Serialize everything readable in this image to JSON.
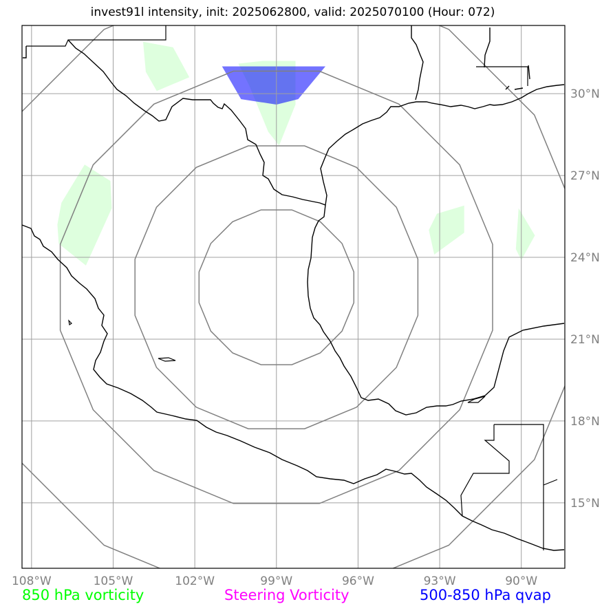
{
  "title": "invest91l intensity, init: 2025062800, valid: 2025070100 (Hour: 072)",
  "lon_labels": [
    {
      "lon": -108,
      "label": "108°W"
    },
    {
      "lon": -105,
      "label": "105°W"
    },
    {
      "lon": -102,
      "label": "102°W"
    },
    {
      "lon": -99,
      "label": "99°W"
    },
    {
      "lon": -96,
      "label": "96°W"
    },
    {
      "lon": -93,
      "label": "93°W"
    },
    {
      "lon": -90,
      "label": "90°W"
    }
  ],
  "lat_labels": [
    {
      "lat": 30,
      "label": "30°N"
    },
    {
      "lat": 27,
      "label": "27°N"
    },
    {
      "lat": 24,
      "label": "24°N"
    },
    {
      "lat": 21,
      "label": "21°N"
    },
    {
      "lat": 18,
      "label": "18°N"
    },
    {
      "lat": 15,
      "label": "15°N"
    }
  ],
  "extent": {
    "lon_min": -108.35,
    "lon_max": -88.4,
    "lat_min": 12.6,
    "lat_max": 32.5
  },
  "center": {
    "lon": -99.0,
    "lat": 22.9
  },
  "range_rings_deg": [
    2.9,
    5.3,
    8.1,
    11.4
  ],
  "legend": {
    "vorticity_850": "850 hPa vorticity",
    "steering_vorticity": "Steering Vorticity",
    "qvap_500_850": "500-850 hPa qvap"
  },
  "colors": {
    "vorticity_850": "#00ff00",
    "steering_vorticity": "#ff00ff",
    "qvap_500_850": "#0000ff",
    "gridline": "#a0a0a0",
    "ring": "#808080",
    "coastline": "#000000"
  },
  "vorticity_regions": [
    [
      [
        -107.05,
        25.2
      ],
      [
        -106.9,
        26.0
      ],
      [
        -106.05,
        27.4
      ],
      [
        -105.1,
        26.8
      ],
      [
        -105.05,
        25.8
      ],
      [
        -106.0,
        23.7
      ],
      [
        -107.0,
        24.5
      ]
    ],
    [
      [
        -102.8,
        31.7
      ],
      [
        -102.2,
        30.6
      ],
      [
        -103.4,
        30.1
      ],
      [
        -103.8,
        30.8
      ],
      [
        -103.9,
        31.9
      ]
    ],
    [
      [
        -99.5,
        31.2
      ],
      [
        -98.3,
        31.2
      ],
      [
        -98.3,
        29.6
      ],
      [
        -98.9,
        28.1
      ],
      [
        -99.3,
        28.6
      ],
      [
        -100.0,
        30.3
      ],
      [
        -100.4,
        31.1
      ]
    ],
    [
      [
        -93.1,
        25.6
      ],
      [
        -92.1,
        25.9
      ],
      [
        -92.1,
        24.9
      ],
      [
        -93.2,
        24.1
      ],
      [
        -93.4,
        25.0
      ]
    ],
    [
      [
        -90.1,
        25.8
      ],
      [
        -89.5,
        24.8
      ],
      [
        -90.0,
        23.9
      ],
      [
        -90.2,
        24.3
      ]
    ]
  ],
  "qvap_regions": [
    [
      [
        -101.0,
        31.0
      ],
      [
        -97.2,
        31.0
      ],
      [
        -98.2,
        29.8
      ],
      [
        -99.0,
        29.6
      ],
      [
        -100.3,
        29.8
      ]
    ]
  ]
}
